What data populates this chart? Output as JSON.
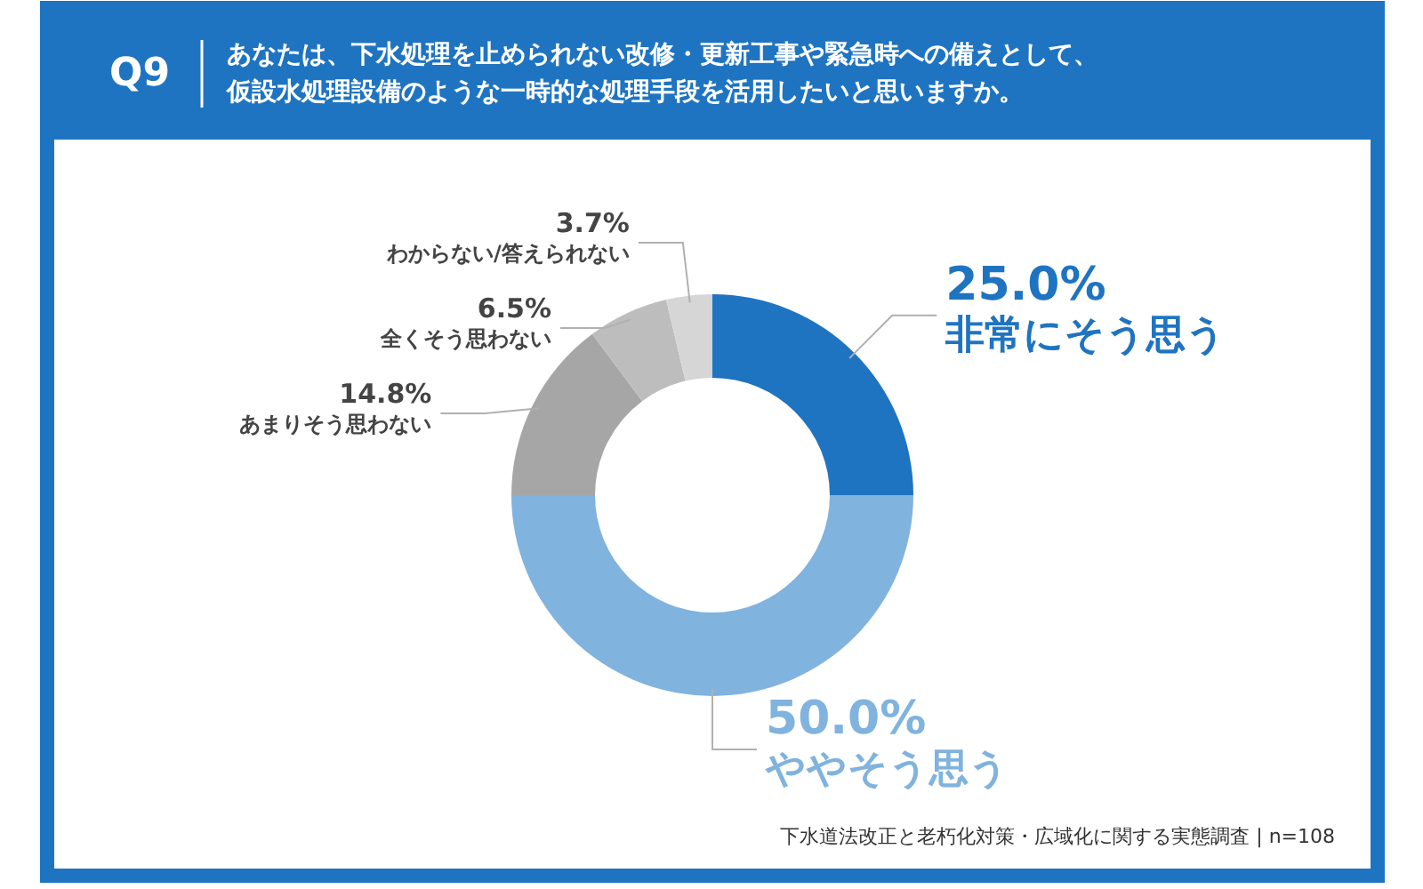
{
  "chart_data": {
    "type": "donut",
    "title": "Q9",
    "subtitle": "あなたは、下水処理を止められない改修・更新工事や緊急時への備えとして、仮設水処理設備のような一時的な処理手段を活用したいと思いますか。",
    "categories": [
      "非常にそう思う",
      "ややそう思う",
      "あまりそう思わない",
      "全くそう思わない",
      "わからない/答えられない"
    ],
    "values": [
      25.0,
      50.0,
      14.8,
      6.5,
      3.7
    ],
    "colors": [
      "#1f74c1",
      "#80b3de",
      "#a6a6a6",
      "#bdbdbd",
      "#d6d6d6"
    ],
    "value_labels": [
      "25.0%",
      "50.0%",
      "14.8%",
      "6.5%",
      "3.7%"
    ],
    "annotations": [
      "下水道法改正と老朽化対策・広域化に関する実態調査 | n=108"
    ]
  }
}
